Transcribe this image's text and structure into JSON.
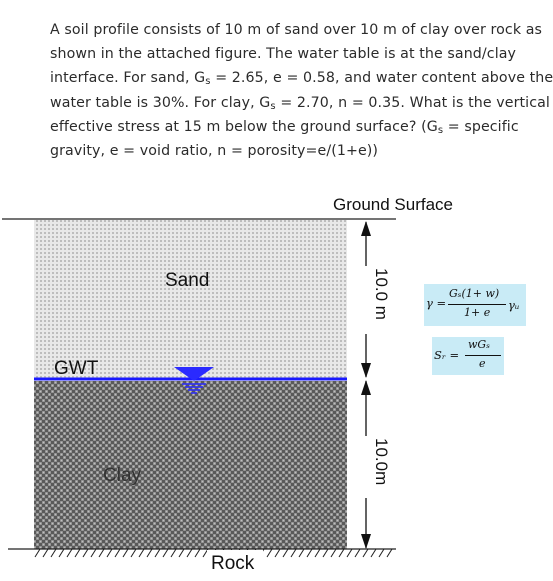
{
  "question": {
    "lines": [
      {
        "parts": [
          {
            "t": "A soil profile consists of 10 m of sand over 10 m of clay over rock as"
          }
        ]
      },
      {
        "parts": [
          {
            "t": "shown in the attached figure. The water table is at the sand/clay"
          }
        ]
      },
      {
        "parts": [
          {
            "t": "interface. For sand, G"
          },
          {
            "t": "s",
            "sub": true
          },
          {
            "t": " = 2.65, e = 0.58, and water content above the"
          }
        ]
      },
      {
        "parts": [
          {
            "t": "water table is 30%. For clay, G"
          },
          {
            "t": "s",
            "sub": true
          },
          {
            "t": " = 2.70, n = 0.35. What is the vertical"
          }
        ]
      },
      {
        "parts": [
          {
            "t": "effective stress at 15 m below the ground surface? (G"
          },
          {
            "t": "s",
            "sub": true
          },
          {
            "t": " = specific"
          }
        ]
      },
      {
        "parts": [
          {
            "t": "gravity, e = void ratio, n = porosity=e/(1+e))"
          }
        ]
      }
    ]
  },
  "diagram": {
    "ground_surface_label": "Ground Surface",
    "sand_label": "Sand",
    "gwt_label": "GWT",
    "clay_label": "Clay",
    "rock_label": "Rock",
    "sand_thickness_label": "10.0 m",
    "clay_thickness_label": "10.0m",
    "colors": {
      "sand_fill": "#e4e4e4",
      "clay_fill": "#6e6e6e",
      "water_line": "#1a1aff",
      "formula_bg": "#c9ebf6"
    }
  },
  "formulas": {
    "unit_weight": {
      "lhs": "γ =",
      "numerator": "Gₛ(1+ w)",
      "denominator": "1+ e",
      "tail": "γᵤ"
    },
    "saturation": {
      "lhs": "Sᵣ =",
      "numerator": "wGₛ",
      "denominator": "e"
    }
  }
}
